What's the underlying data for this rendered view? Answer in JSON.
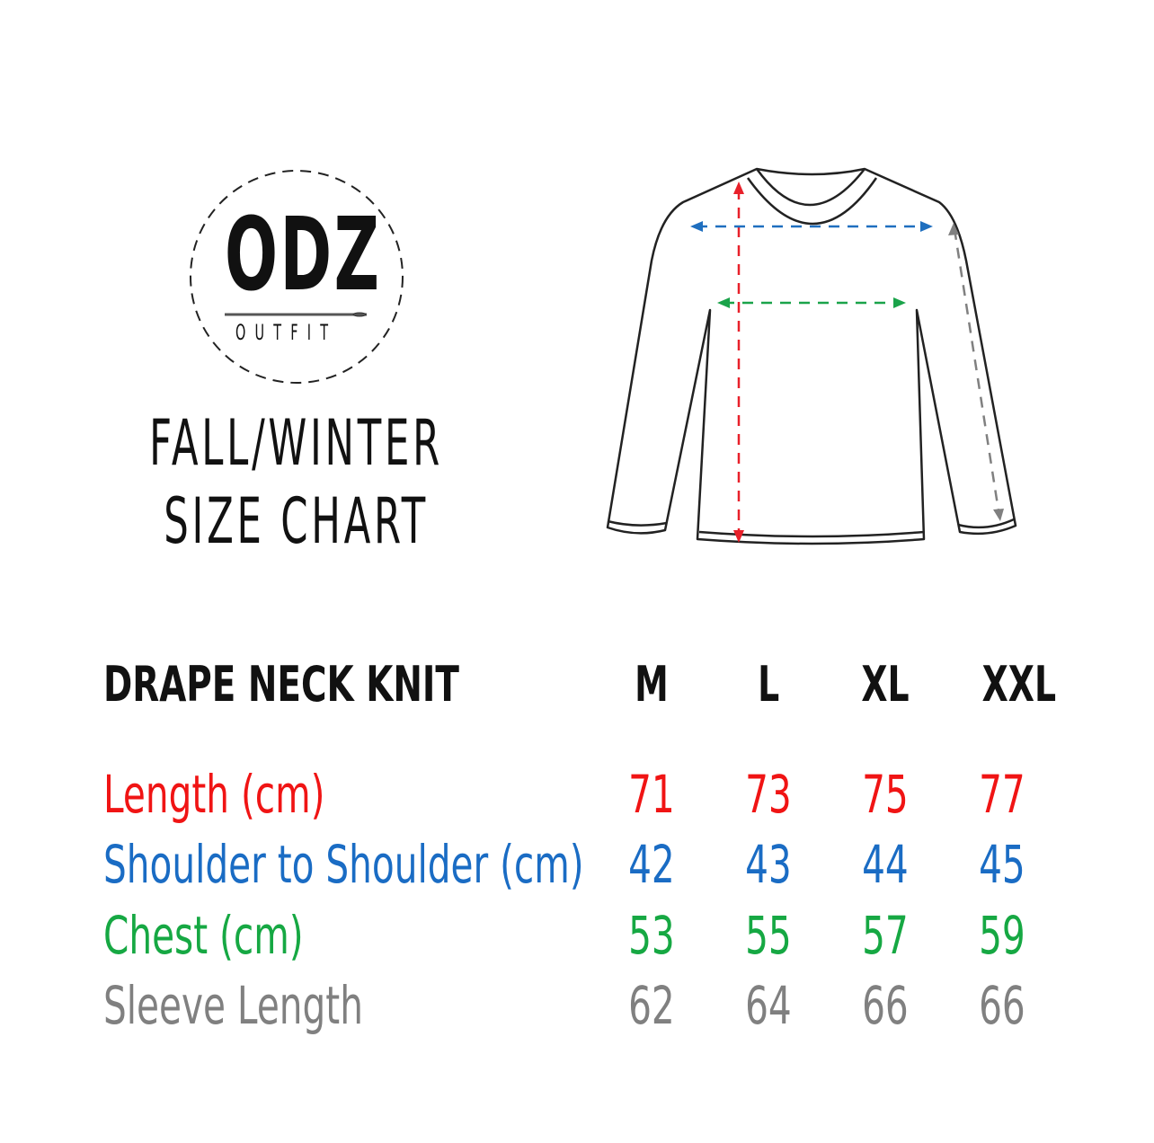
{
  "brand": {
    "logo_text": "ODZ",
    "logo_sub": "OUTFIT"
  },
  "title": {
    "line1": "FALL/WINTER",
    "line2": "SIZE CHART"
  },
  "illustration": {
    "icon": "long-sleeve-sweater-icon",
    "arrows": {
      "length": "#e8202a",
      "shoulder": "#1f6fbf",
      "chest": "#1aa34a",
      "sleeve": "#808080"
    }
  },
  "table": {
    "product": "DRAPE NECK KNIT",
    "sizes": [
      "M",
      "L",
      "XL",
      "XXL"
    ],
    "rows": [
      {
        "label": "Length (cm)",
        "color": "#f01414",
        "values": [
          "71",
          "73",
          "75",
          "77"
        ]
      },
      {
        "label": "Shoulder to Shoulder (cm)",
        "color": "#1a6cc4",
        "values": [
          "42",
          "43",
          "44",
          "45"
        ]
      },
      {
        "label": "Chest (cm)",
        "color": "#16a843",
        "values": [
          "53",
          "55",
          "57",
          "59"
        ]
      },
      {
        "label": "Sleeve Length",
        "color": "#808080",
        "values": [
          "62",
          "64",
          "66",
          "66"
        ]
      }
    ]
  }
}
